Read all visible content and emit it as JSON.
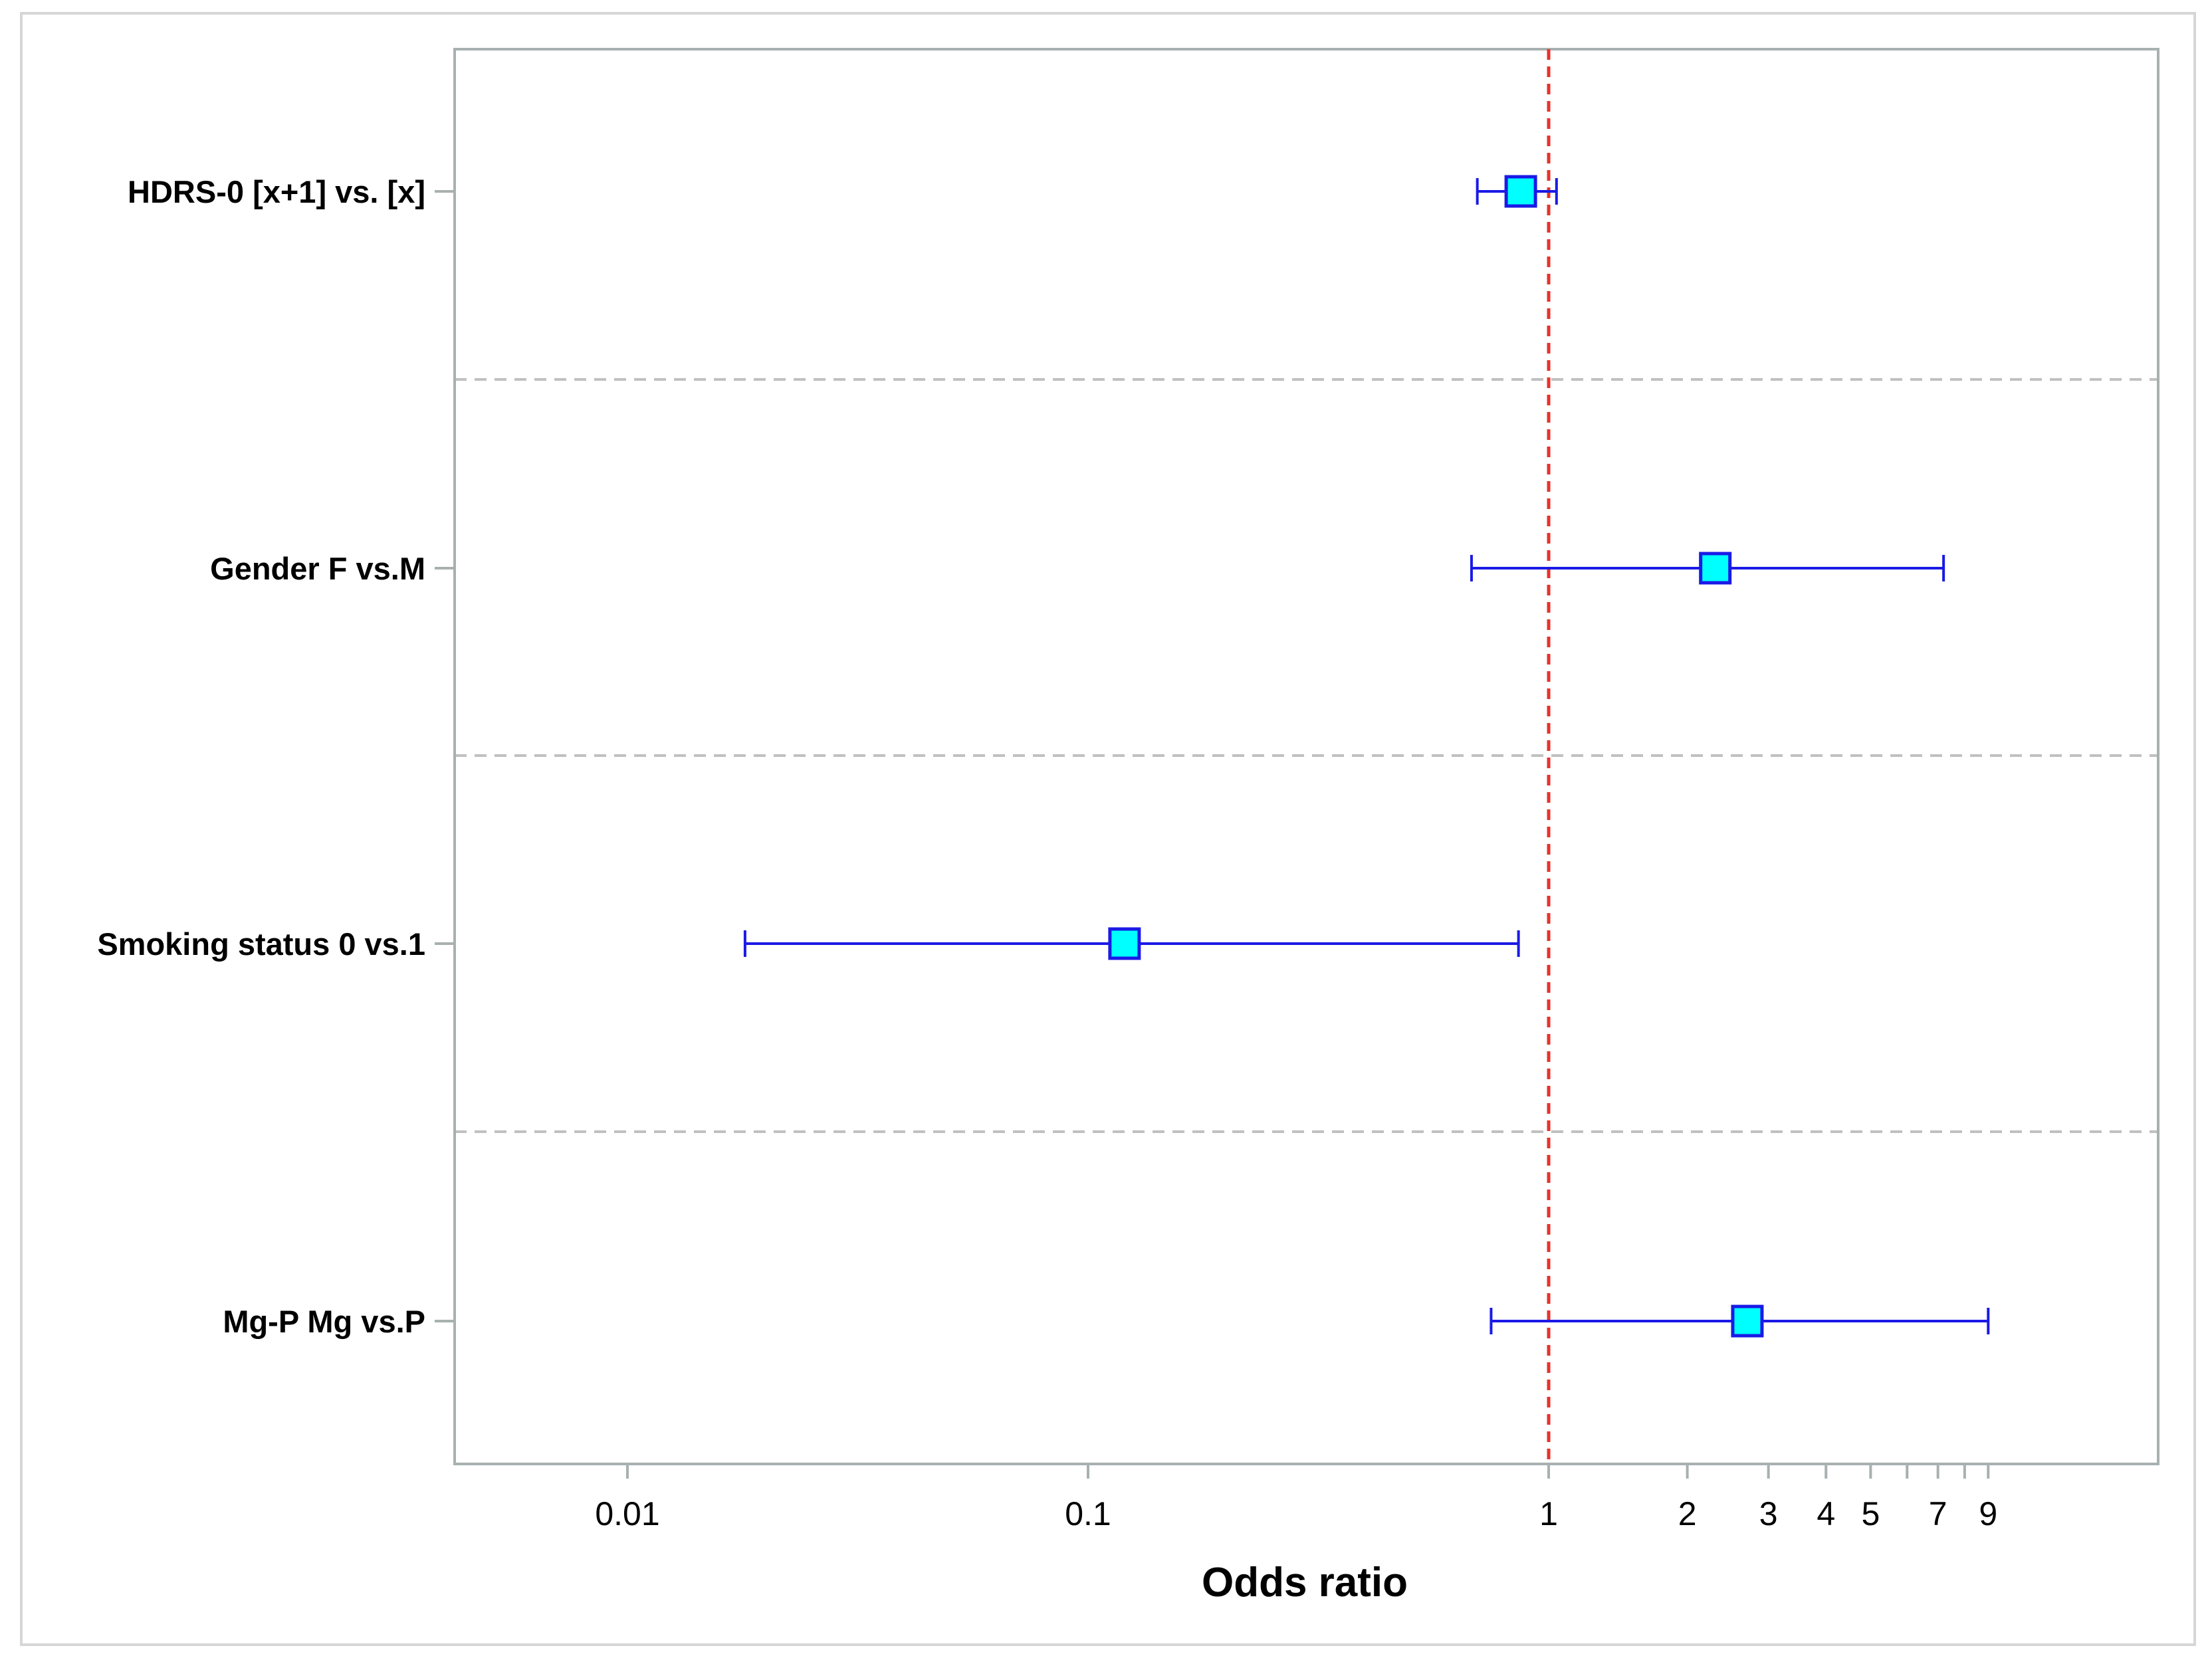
{
  "chart_data": {
    "type": "forest",
    "title": "",
    "xlabel": "Odds ratio",
    "ylabel": "",
    "xscale": "log",
    "xlim": [
      0.005,
      15
    ],
    "reference_line": 1,
    "grid": "horizontal dashed separators between rows",
    "legend": "none",
    "tick_values": [
      0.01,
      0.1,
      1,
      2,
      3,
      4,
      5,
      6,
      7,
      8,
      9
    ],
    "tick_labels": [
      "0.01",
      "0.1",
      "1",
      "2",
      "3",
      "4",
      "5",
      "",
      "7",
      "",
      "9"
    ],
    "rows": [
      {
        "label": "HDRS-0 [x+1] vs. [x]",
        "estimate": 0.87,
        "lower": 0.7,
        "upper": 1.04
      },
      {
        "label": "Gender F vs.M",
        "estimate": 2.3,
        "lower": 0.68,
        "upper": 7.2
      },
      {
        "label": "Smoking status  0 vs.1",
        "estimate": 0.12,
        "lower": 0.018,
        "upper": 0.86
      },
      {
        "label": "Mg-P  Mg vs.P",
        "estimate": 2.7,
        "lower": 0.75,
        "upper": 9
      }
    ],
    "colors": {
      "marker_fill": "#00ffff",
      "marker_stroke": "#1a1ae6",
      "ci_line": "#1a1ae6",
      "reference_line": "#e8322a",
      "separator": "#c0c0c0",
      "frame": "#a8b0b0",
      "outer_border": "#d6d6d6"
    }
  }
}
